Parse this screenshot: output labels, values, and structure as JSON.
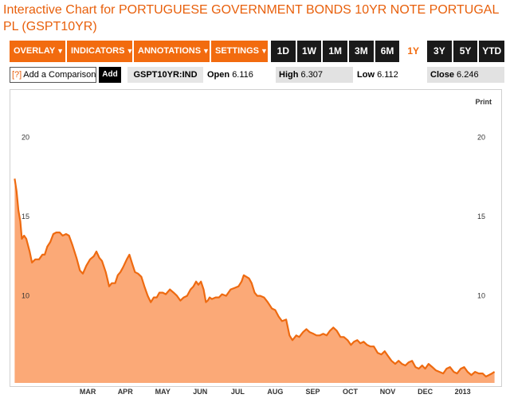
{
  "page": {
    "title": "Interactive Chart for PORTUGUESE GOVERNMENT BONDS 10YR NOTE PORTUGAL PL (GSPT10YR)"
  },
  "toolbar": {
    "menus": [
      {
        "label": "OVERLAY",
        "icon": "caret-down-icon"
      },
      {
        "label": "INDICATORS",
        "icon": "caret-down-icon"
      },
      {
        "label": "ANNOTATIONS",
        "icon": "caret-down-icon"
      },
      {
        "label": "SETTINGS",
        "icon": "caret-down-icon"
      }
    ],
    "ranges": [
      "1D",
      "1W",
      "1M",
      "3M",
      "6M",
      "1Y",
      "3Y",
      "5Y",
      "YTD"
    ],
    "active_range": "1Y"
  },
  "comparison": {
    "help": "[?]",
    "placeholder": "Add a Comparison",
    "add_label": "Add"
  },
  "quote": {
    "ticker": "GSPT10YR:IND",
    "open_label": "Open",
    "open_value": "6.116",
    "high_label": "High",
    "high_value": "6.307",
    "low_label": "Low",
    "low_value": "6.112",
    "close_label": "Close",
    "close_value": "6.246"
  },
  "chart_links": {
    "print": "Print"
  },
  "colors": {
    "accent": "#f26b0f",
    "title": "#e8600c",
    "area_fill": "#fba977",
    "line": "#ee6a10"
  },
  "chart_data": {
    "type": "area",
    "title": "",
    "xlabel": "",
    "ylabel": "",
    "ylim": [
      4.5,
      23
    ],
    "yticks": [
      10,
      15,
      20
    ],
    "grid": false,
    "x_ticks": [
      {
        "label": "MAR",
        "x": 1.0
      },
      {
        "label": "APR",
        "x": 2.0
      },
      {
        "label": "MAY",
        "x": 3.0
      },
      {
        "label": "JUN",
        "x": 4.0
      },
      {
        "label": "JUL",
        "x": 5.0
      },
      {
        "label": "AUG",
        "x": 6.0
      },
      {
        "label": "SEP",
        "x": 7.0
      },
      {
        "label": "OCT",
        "x": 8.0
      },
      {
        "label": "NOV",
        "x": 9.0
      },
      {
        "label": "DEC",
        "x": 10.0
      },
      {
        "label": "2013",
        "x": 11.0
      }
    ],
    "xlim": [
      -0.98,
      11.9
    ],
    "series": [
      {
        "values": [
          [
            -0.95,
            17.4
          ],
          [
            -0.9,
            16.6
          ],
          [
            -0.85,
            15.4
          ],
          [
            -0.8,
            14.7
          ],
          [
            -0.76,
            13.6
          ],
          [
            -0.7,
            13.8
          ],
          [
            -0.64,
            13.6
          ],
          [
            -0.55,
            12.8
          ],
          [
            -0.49,
            12.1
          ],
          [
            -0.4,
            12.3
          ],
          [
            -0.3,
            12.3
          ],
          [
            -0.21,
            12.6
          ],
          [
            -0.15,
            12.6
          ],
          [
            -0.08,
            13.1
          ],
          [
            0.0,
            13.4
          ],
          [
            0.08,
            13.9
          ],
          [
            0.16,
            14.0
          ],
          [
            0.25,
            14.0
          ],
          [
            0.33,
            13.8
          ],
          [
            0.42,
            13.9
          ],
          [
            0.5,
            13.8
          ],
          [
            0.59,
            13.2
          ],
          [
            0.7,
            12.4
          ],
          [
            0.79,
            11.6
          ],
          [
            0.87,
            11.4
          ],
          [
            0.96,
            11.9
          ],
          [
            1.06,
            12.3
          ],
          [
            1.16,
            12.5
          ],
          [
            1.23,
            12.8
          ],
          [
            1.31,
            12.4
          ],
          [
            1.38,
            12.2
          ],
          [
            1.48,
            11.5
          ],
          [
            1.57,
            10.6
          ],
          [
            1.64,
            10.8
          ],
          [
            1.73,
            10.8
          ],
          [
            1.8,
            11.3
          ],
          [
            1.87,
            11.5
          ],
          [
            1.94,
            11.8
          ],
          [
            2.04,
            12.3
          ],
          [
            2.11,
            12.6
          ],
          [
            2.19,
            12.0
          ],
          [
            2.26,
            11.5
          ],
          [
            2.34,
            11.4
          ],
          [
            2.43,
            11.2
          ],
          [
            2.51,
            10.6
          ],
          [
            2.6,
            10.0
          ],
          [
            2.68,
            9.6
          ],
          [
            2.76,
            9.9
          ],
          [
            2.84,
            9.9
          ],
          [
            2.91,
            10.2
          ],
          [
            3.0,
            10.2
          ],
          [
            3.08,
            10.1
          ],
          [
            3.19,
            10.4
          ],
          [
            3.29,
            10.2
          ],
          [
            3.38,
            10.0
          ],
          [
            3.47,
            9.7
          ],
          [
            3.56,
            9.9
          ],
          [
            3.65,
            10.0
          ],
          [
            3.74,
            10.4
          ],
          [
            3.82,
            10.6
          ],
          [
            3.89,
            10.9
          ],
          [
            3.95,
            10.7
          ],
          [
            4.02,
            10.9
          ],
          [
            4.09,
            10.4
          ],
          [
            4.15,
            9.6
          ],
          [
            4.2,
            9.7
          ],
          [
            4.25,
            9.9
          ],
          [
            4.31,
            9.8
          ],
          [
            4.41,
            9.9
          ],
          [
            4.5,
            9.9
          ],
          [
            4.58,
            10.1
          ],
          [
            4.69,
            10.0
          ],
          [
            4.81,
            10.4
          ],
          [
            4.92,
            10.5
          ],
          [
            5.02,
            10.6
          ],
          [
            5.1,
            10.9
          ],
          [
            5.16,
            11.3
          ],
          [
            5.23,
            11.2
          ],
          [
            5.3,
            11.1
          ],
          [
            5.37,
            10.8
          ],
          [
            5.45,
            10.2
          ],
          [
            5.52,
            10.0
          ],
          [
            5.6,
            10.0
          ],
          [
            5.7,
            9.9
          ],
          [
            5.8,
            9.6
          ],
          [
            5.91,
            9.2
          ],
          [
            6.0,
            9.1
          ],
          [
            6.09,
            8.7
          ],
          [
            6.18,
            8.4
          ],
          [
            6.29,
            8.5
          ],
          [
            6.38,
            7.5
          ],
          [
            6.46,
            7.2
          ],
          [
            6.56,
            7.5
          ],
          [
            6.64,
            7.4
          ],
          [
            6.74,
            7.7
          ],
          [
            6.83,
            7.9
          ],
          [
            6.92,
            7.7
          ],
          [
            7.02,
            7.6
          ],
          [
            7.1,
            7.5
          ],
          [
            7.19,
            7.5
          ],
          [
            7.28,
            7.6
          ],
          [
            7.37,
            7.5
          ],
          [
            7.46,
            7.8
          ],
          [
            7.55,
            8.0
          ],
          [
            7.64,
            7.8
          ],
          [
            7.74,
            7.4
          ],
          [
            7.83,
            7.4
          ],
          [
            7.93,
            7.2
          ],
          [
            8.02,
            6.9
          ],
          [
            8.1,
            7.1
          ],
          [
            8.19,
            7.2
          ],
          [
            8.27,
            7.0
          ],
          [
            8.36,
            7.1
          ],
          [
            8.45,
            6.9
          ],
          [
            8.54,
            6.8
          ],
          [
            8.63,
            6.8
          ],
          [
            8.73,
            6.4
          ],
          [
            8.83,
            6.3
          ],
          [
            8.92,
            6.5
          ],
          [
            9.01,
            6.2
          ],
          [
            9.1,
            5.9
          ],
          [
            9.2,
            5.7
          ],
          [
            9.29,
            5.9
          ],
          [
            9.38,
            5.7
          ],
          [
            9.47,
            5.6
          ],
          [
            9.56,
            5.8
          ],
          [
            9.65,
            5.9
          ],
          [
            9.74,
            5.5
          ],
          [
            9.83,
            5.4
          ],
          [
            9.92,
            5.6
          ],
          [
            10.0,
            5.4
          ],
          [
            10.09,
            5.7
          ],
          [
            10.19,
            5.5
          ],
          [
            10.28,
            5.3
          ],
          [
            10.38,
            5.2
          ],
          [
            10.48,
            5.1
          ],
          [
            10.57,
            5.4
          ],
          [
            10.66,
            5.5
          ],
          [
            10.76,
            5.2
          ],
          [
            10.85,
            5.1
          ],
          [
            10.95,
            5.4
          ],
          [
            11.04,
            5.5
          ],
          [
            11.13,
            5.2
          ],
          [
            11.23,
            5.0
          ],
          [
            11.33,
            5.2
          ],
          [
            11.43,
            5.1
          ],
          [
            11.53,
            5.1
          ],
          [
            11.62,
            4.9
          ],
          [
            11.7,
            5.0
          ],
          [
            11.78,
            5.1
          ],
          [
            11.85,
            5.2
          ]
        ]
      }
    ]
  }
}
